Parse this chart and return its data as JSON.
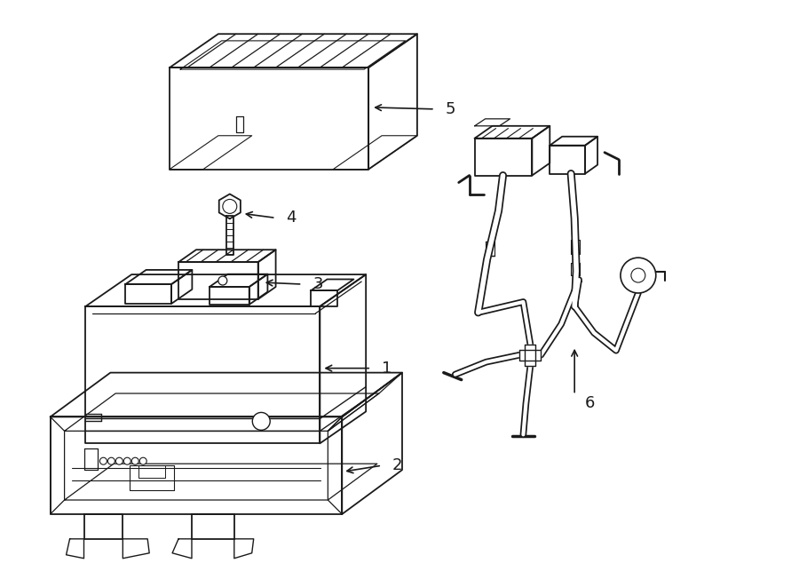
{
  "background_color": "#ffffff",
  "line_color": "#1a1a1a",
  "line_width": 1.3,
  "fig_width": 9.0,
  "fig_height": 6.61,
  "dpi": 100
}
